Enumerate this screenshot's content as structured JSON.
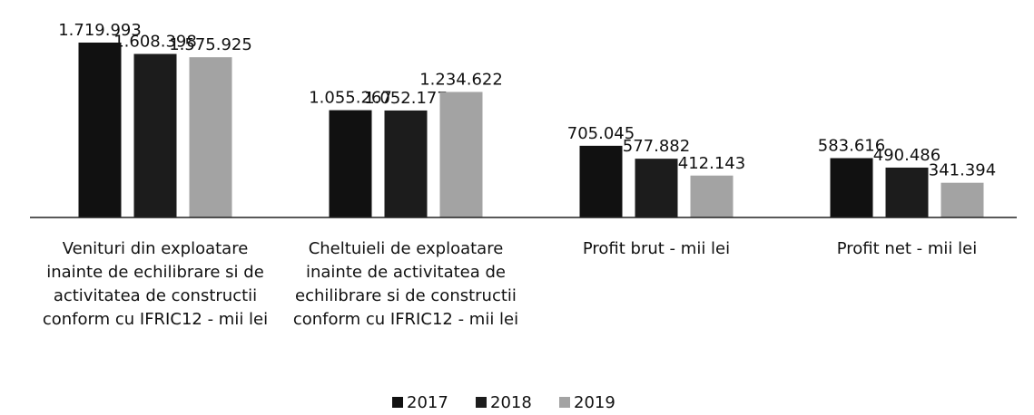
{
  "chart_data": {
    "type": "bar",
    "categories": [
      "Venituri din exploatare inainte de echilibrare si de activitatea de constructii conform cu IFRIC12 - mii lei",
      "Cheltuieli de exploatare inainte de activitatea de echilibrare si de constructii conform cu IFRIC12 - mii lei",
      "Profit brut - mii lei",
      "Profit net - mii lei"
    ],
    "series": [
      {
        "name": "2017",
        "color": "#111111",
        "values": [
          1719993,
          1055267,
          705045,
          583616
        ],
        "value_labels": [
          "1.719.993",
          "1.055.267",
          "705.045",
          "583.616"
        ]
      },
      {
        "name": "2018",
        "color": "#1c1c1c",
        "values": [
          1608398,
          1052177,
          577882,
          490486
        ],
        "value_labels": [
          "1.608.398",
          "1.052.177",
          "577.882",
          "490.486"
        ]
      },
      {
        "name": "2019",
        "color": "#a3a3a3",
        "values": [
          1575925,
          1234622,
          412143,
          341394
        ],
        "value_labels": [
          "1.575.925",
          "1.234.622",
          "412.143",
          "341.394"
        ]
      }
    ],
    "legend": "bottom"
  }
}
